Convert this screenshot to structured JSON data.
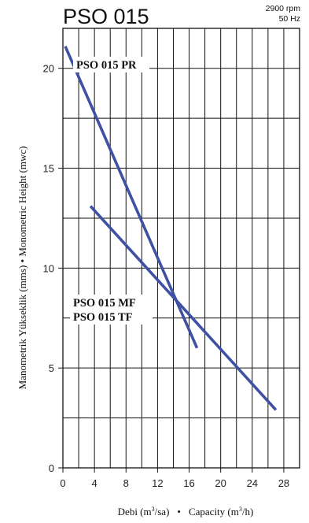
{
  "chart_data": {
    "type": "line",
    "title": "PSO 015",
    "subtitle": [
      "2900 rpm",
      "50 Hz"
    ],
    "xlabel": {
      "prefix": "Debi (m",
      "prefix_sup": "3",
      "prefix_end": "/sa)",
      "separator": "•",
      "suffix": "Capacity (m",
      "suffix_sup": "3",
      "suffix_end": "/h)"
    },
    "ylabel": "Manometrik Yükseklik (mms) • Monometric Height (mwc)",
    "xlim": [
      0,
      30
    ],
    "ylim": [
      0,
      22
    ],
    "x_ticks": [
      0,
      4,
      8,
      12,
      16,
      20,
      24,
      28
    ],
    "y_ticks": [
      0,
      5,
      10,
      15,
      20
    ],
    "grid": true,
    "series": [
      {
        "name": "PSO 015 PR",
        "x": [
          0.3,
          17
        ],
        "y": [
          21.1,
          6
        ],
        "label_lines": [
          "PSO 015 PR"
        ]
      },
      {
        "name": "PSO 015 MF / PSO 015 TF",
        "x": [
          3.5,
          27
        ],
        "y": [
          13.1,
          2.9
        ],
        "label_lines": [
          "PSO 015 MF",
          "PSO 015 TF"
        ]
      }
    ],
    "line_color": "#3f51a3"
  }
}
